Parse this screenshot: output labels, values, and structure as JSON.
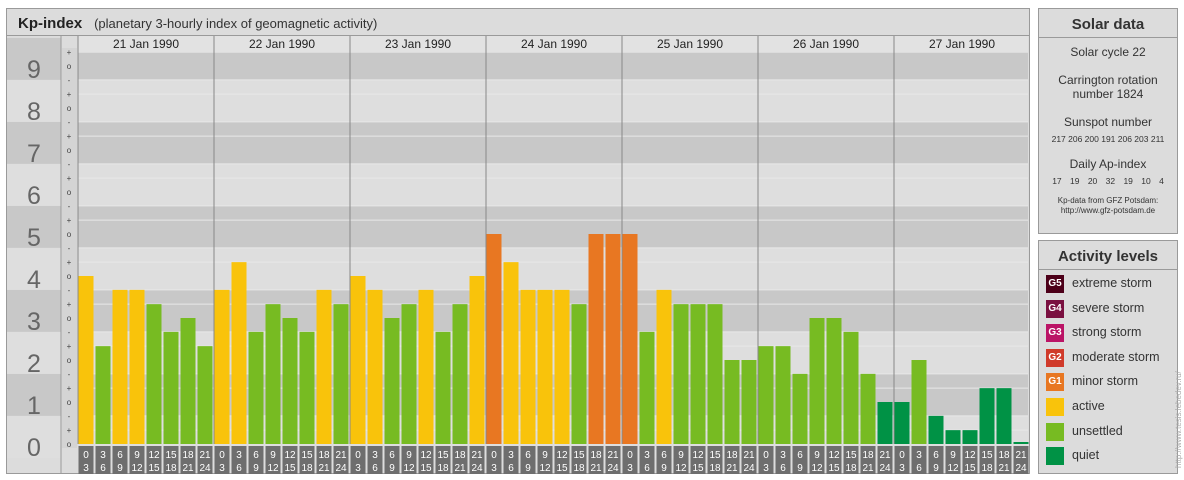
{
  "header": {
    "title": "Kp-index",
    "subtitle": "(planetary 3-hourly index of geomagnetic activity)"
  },
  "chart_data": {
    "type": "bar",
    "y_tick_labels": [
      "0",
      "1",
      "2",
      "3",
      "4",
      "5",
      "6",
      "7",
      "8",
      "9"
    ],
    "ylim": [
      0,
      9.33
    ],
    "thirds_labels": [
      "o",
      "+",
      "-"
    ],
    "days": [
      "21 Jan 1990",
      "22 Jan 1990",
      "23 Jan 1990",
      "24 Jan 1990",
      "25 Jan 1990",
      "26 Jan 1990",
      "27 Jan 1990"
    ],
    "interval_start_labels": [
      "0",
      "3",
      "6",
      "9",
      "12",
      "15",
      "18",
      "21"
    ],
    "interval_end_labels": [
      "3",
      "6",
      "9",
      "12",
      "15",
      "18",
      "21",
      "24"
    ],
    "values": [
      [
        4.0,
        2.33,
        3.67,
        3.67,
        3.33,
        2.67,
        3.0,
        2.33
      ],
      [
        3.67,
        4.33,
        2.67,
        3.33,
        3.0,
        2.67,
        3.67,
        3.33
      ],
      [
        4.0,
        3.67,
        3.0,
        3.33,
        3.67,
        2.67,
        3.33,
        4.0
      ],
      [
        5.0,
        4.33,
        3.67,
        3.67,
        3.67,
        3.33,
        5.0,
        5.0
      ],
      [
        5.0,
        2.67,
        3.67,
        3.33,
        3.33,
        3.33,
        2.0,
        2.0
      ],
      [
        2.33,
        2.33,
        1.67,
        3.0,
        3.0,
        2.67,
        1.67,
        1.0
      ],
      [
        1.0,
        2.0,
        0.67,
        0.33,
        0.33,
        1.33,
        1.33,
        0.0
      ]
    ],
    "colors": {
      "quiet": "#009245",
      "unsettled": "#77bb22",
      "active": "#f9c30b",
      "G1": "#e87722"
    }
  },
  "solar": {
    "title": "Solar data",
    "cycle": "Solar cycle 22",
    "carrington_1": "Carrington rotation",
    "carrington_2": "number 1824",
    "sunspot_label": "Sunspot number",
    "sunspot_values": "217 206 200 191 206 203 211",
    "ap_label": "Daily Ap-index",
    "ap_values": "17 19 20 32 19 10 4",
    "credit_1": "Kp-data from GFZ Potsdam:",
    "credit_2": "http://www.gfz-potsdam.de"
  },
  "activity": {
    "title": "Activity levels",
    "levels": [
      {
        "badge": "G5",
        "label": "extreme storm",
        "color": "#4d0019"
      },
      {
        "badge": "G4",
        "label": "severe storm",
        "color": "#7a1040"
      },
      {
        "badge": "G3",
        "label": "strong storm",
        "color": "#bb1466"
      },
      {
        "badge": "G2",
        "label": "moderate storm",
        "color": "#d03a2a"
      },
      {
        "badge": "G1",
        "label": "minor storm",
        "color": "#e87722"
      },
      {
        "badge": "",
        "label": "active",
        "color": "#f9c30b"
      },
      {
        "badge": "",
        "label": "unsettled",
        "color": "#77bb22"
      },
      {
        "badge": "",
        "label": "quiet",
        "color": "#009245"
      }
    ]
  },
  "side_credit": "http://www.tesis.lebedev.ru/"
}
